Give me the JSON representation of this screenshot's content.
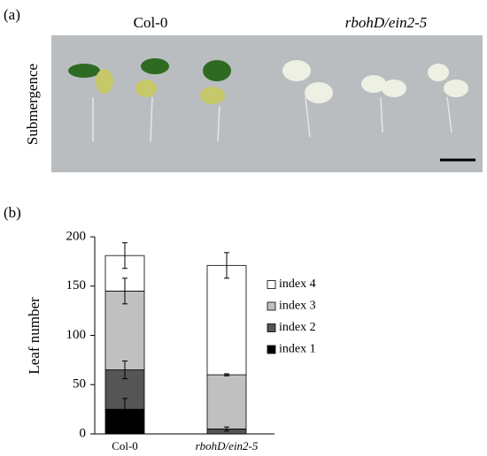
{
  "panels": {
    "a": "(a)",
    "b": "(b)"
  },
  "photo": {
    "columns": [
      "Col-0",
      "rbohD/ein2-5"
    ],
    "row_label": "Submergence"
  },
  "chart_data": {
    "type": "bar",
    "stacked": true,
    "y_label": "Leaf number",
    "categories": [
      "Col-0",
      "rbohD/ein2-5"
    ],
    "series": [
      {
        "name": "index 1",
        "color": "#000000",
        "values": [
          25,
          0
        ],
        "errors": [
          11,
          0
        ]
      },
      {
        "name": "index 2",
        "color": "#555555",
        "values": [
          40,
          5
        ],
        "errors": [
          9,
          2
        ]
      },
      {
        "name": "index 3",
        "color": "#c0c0c0",
        "values": [
          80,
          55
        ],
        "errors": [
          13,
          1
        ]
      },
      {
        "name": "index 4",
        "color": "#ffffff",
        "values": [
          36,
          111
        ],
        "errors": [
          13,
          13
        ]
      }
    ],
    "ylim": [
      0,
      200
    ],
    "yticks": [
      0,
      50,
      100,
      150,
      200
    ],
    "legend": "right"
  }
}
